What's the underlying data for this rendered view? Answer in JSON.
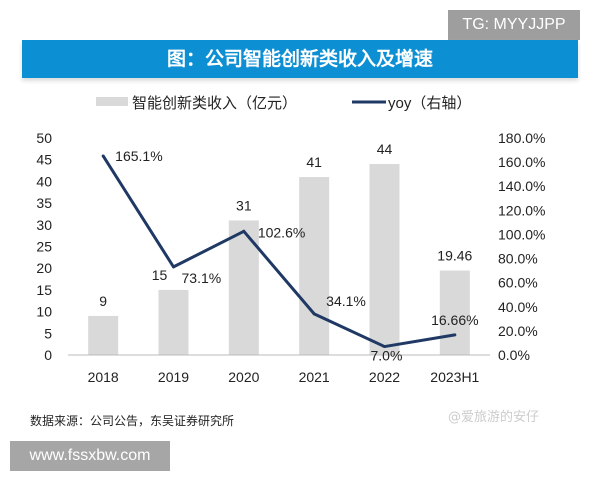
{
  "watermarks": {
    "top_right": "TG: MYYJJPP",
    "bottom_left": "www.fssxbw.com",
    "bottom_right": "@爱旅游的安仔"
  },
  "source": "数据来源：公司公告，东吴证券研究所",
  "chart_data": {
    "type": "bar+line",
    "title": "图：公司智能创新类收入及增速",
    "categories": [
      "2018",
      "2019",
      "2020",
      "2021",
      "2022",
      "2023H1"
    ],
    "series": [
      {
        "name": "智能创新类收入（亿元）",
        "type": "bar",
        "axis": "left",
        "values": [
          9,
          15,
          31,
          41,
          44,
          19.46
        ],
        "labels": [
          "9",
          "15",
          "31",
          "41",
          "44",
          "19.46"
        ],
        "color": "#d9d9d9"
      },
      {
        "name": "yoy（右轴）",
        "type": "line",
        "axis": "right",
        "values": [
          165.1,
          73.1,
          102.6,
          34.1,
          7.0,
          16.66
        ],
        "labels": [
          "165.1%",
          "73.1%",
          "102.6%",
          "34.1%",
          "7.0%",
          "16.66%"
        ],
        "color": "#1f3864"
      }
    ],
    "left_axis": {
      "ylim": [
        0,
        50
      ],
      "ticks": [
        "0",
        "5",
        "10",
        "15",
        "20",
        "25",
        "30",
        "35",
        "40",
        "45",
        "50"
      ]
    },
    "right_axis": {
      "ylim": [
        0,
        180
      ],
      "ticks": [
        "0.0%",
        "20.0%",
        "40.0%",
        "60.0%",
        "80.0%",
        "100.0%",
        "120.0%",
        "140.0%",
        "160.0%",
        "180.0%"
      ]
    },
    "legend_position": "top",
    "grid": false
  }
}
